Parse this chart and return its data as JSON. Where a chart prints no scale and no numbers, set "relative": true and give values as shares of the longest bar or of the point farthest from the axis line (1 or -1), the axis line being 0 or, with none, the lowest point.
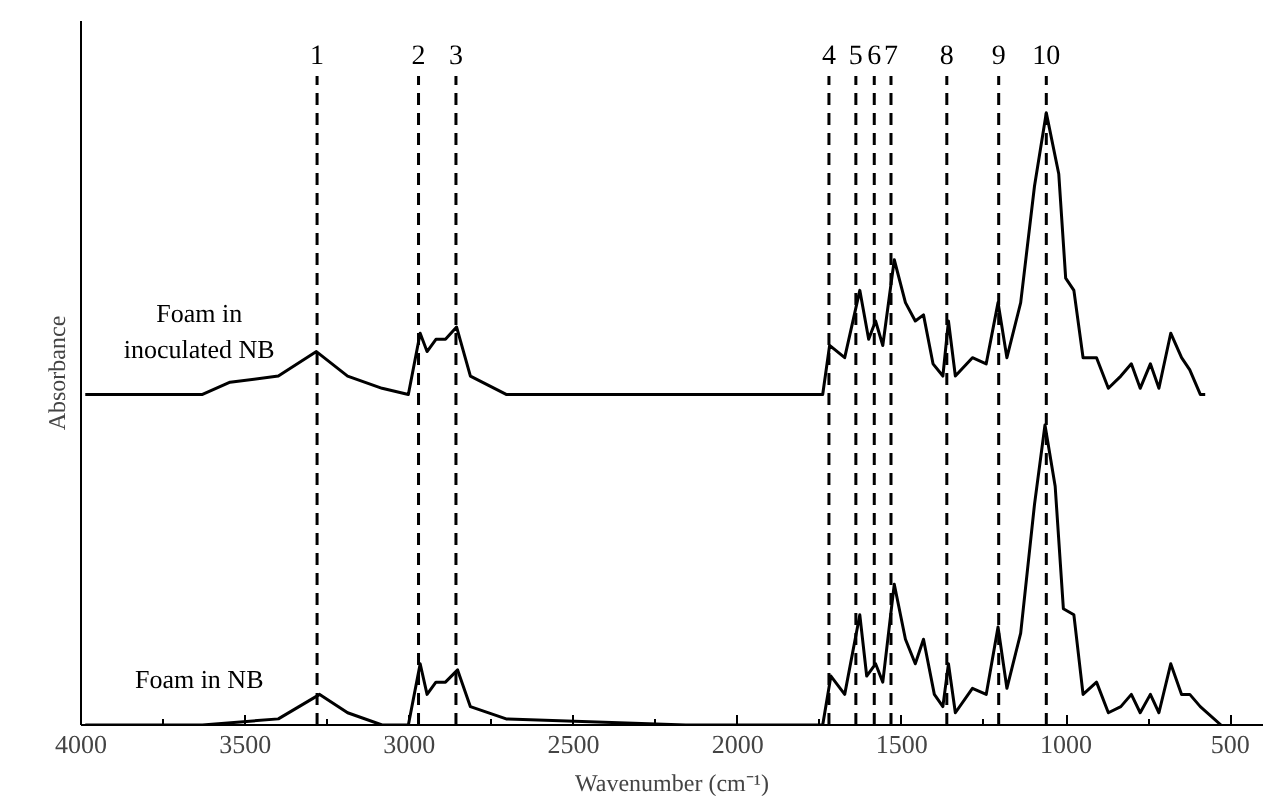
{
  "chart_data": {
    "type": "line",
    "relative": true,
    "xlabel": "Wavenumber (cm⁻¹)",
    "ylabel": "Absorbance",
    "xlim": [
      4000,
      400
    ],
    "xticks": [
      4000,
      3500,
      3000,
      2500,
      2000,
      1500,
      1000,
      500
    ],
    "grid": false,
    "legend": false,
    "marker": "none",
    "line_style": "solid",
    "series": [
      {
        "name": "Foam in\ninoculated NB",
        "color": "#000000",
        "x": [
          3987,
          3630,
          3546,
          3399,
          3283,
          3188,
          3083,
          3003,
          2967,
          2946,
          2919,
          2890,
          2856,
          2814,
          2705,
          2158,
          1741,
          1720,
          1674,
          1628,
          1601,
          1580,
          1558,
          1523,
          1489,
          1459,
          1434,
          1405,
          1375,
          1358,
          1337,
          1285,
          1243,
          1207,
          1180,
          1138,
          1096,
          1060,
          1022,
          1001,
          976,
          948,
          907,
          871,
          833,
          801,
          774,
          743,
          717,
          681,
          648,
          623,
          591,
          576
        ],
        "values": [
          0.54,
          0.54,
          0.56,
          0.57,
          0.61,
          0.57,
          0.55,
          0.54,
          0.64,
          0.61,
          0.63,
          0.63,
          0.65,
          0.57,
          0.54,
          0.54,
          0.54,
          0.62,
          0.6,
          0.71,
          0.63,
          0.66,
          0.62,
          0.76,
          0.69,
          0.66,
          0.67,
          0.59,
          0.57,
          0.66,
          0.57,
          0.6,
          0.59,
          0.69,
          0.6,
          0.69,
          0.88,
          1.0,
          0.9,
          0.73,
          0.71,
          0.6,
          0.6,
          0.55,
          0.57,
          0.59,
          0.55,
          0.59,
          0.55,
          0.64,
          0.6,
          0.58,
          0.54,
          0.54
        ]
      },
      {
        "name": "Foam in NB",
        "color": "#000000",
        "x": [
          3987,
          3630,
          3399,
          3273,
          3188,
          3083,
          3003,
          2967,
          2946,
          2919,
          2890,
          2853,
          2814,
          2705,
          2158,
          1741,
          1716,
          1674,
          1628,
          1607,
          1580,
          1558,
          1523,
          1489,
          1459,
          1434,
          1401,
          1375,
          1358,
          1337,
          1285,
          1243,
          1207,
          1180,
          1138,
          1096,
          1064,
          1033,
          1008,
          976,
          948,
          907,
          871,
          833,
          801,
          774,
          743,
          717,
          681,
          648,
          623,
          591,
          528
        ],
        "values": [
          0,
          0,
          0.01,
          0.05,
          0.02,
          0,
          0,
          0.1,
          0.05,
          0.07,
          0.07,
          0.09,
          0.03,
          0.01,
          0,
          0,
          0.08,
          0.05,
          0.18,
          0.08,
          0.1,
          0.07,
          0.23,
          0.14,
          0.1,
          0.14,
          0.05,
          0.03,
          0.1,
          0.02,
          0.06,
          0.05,
          0.16,
          0.06,
          0.15,
          0.36,
          0.49,
          0.39,
          0.19,
          0.18,
          0.05,
          0.07,
          0.02,
          0.03,
          0.05,
          0.02,
          0.05,
          0.02,
          0.1,
          0.05,
          0.05,
          0.03,
          0
        ]
      }
    ],
    "ref_lines": [
      {
        "axis": "x",
        "value": 3281,
        "color": "#000000",
        "line_style": "dashed"
      },
      {
        "axis": "x",
        "value": 2972,
        "color": "#000000",
        "line_style": "dashed"
      },
      {
        "axis": "x",
        "value": 2858,
        "color": "#000000",
        "line_style": "dashed"
      },
      {
        "axis": "x",
        "value": 1722,
        "color": "#000000",
        "line_style": "dashed"
      },
      {
        "axis": "x",
        "value": 1640,
        "color": "#000000",
        "line_style": "dashed"
      },
      {
        "axis": "x",
        "value": 1584,
        "color": "#000000",
        "line_style": "dashed"
      },
      {
        "axis": "x",
        "value": 1533,
        "color": "#000000",
        "line_style": "dashed"
      },
      {
        "axis": "x",
        "value": 1363,
        "color": "#000000",
        "line_style": "dashed"
      },
      {
        "axis": "x",
        "value": 1205,
        "color": "#000000",
        "line_style": "dashed"
      },
      {
        "axis": "x",
        "value": 1060,
        "color": "#000000",
        "line_style": "dashed"
      }
    ],
    "annotations": [
      "1",
      "2",
      "3",
      "4",
      "5",
      "6",
      "7",
      "8",
      "9",
      "10"
    ]
  }
}
